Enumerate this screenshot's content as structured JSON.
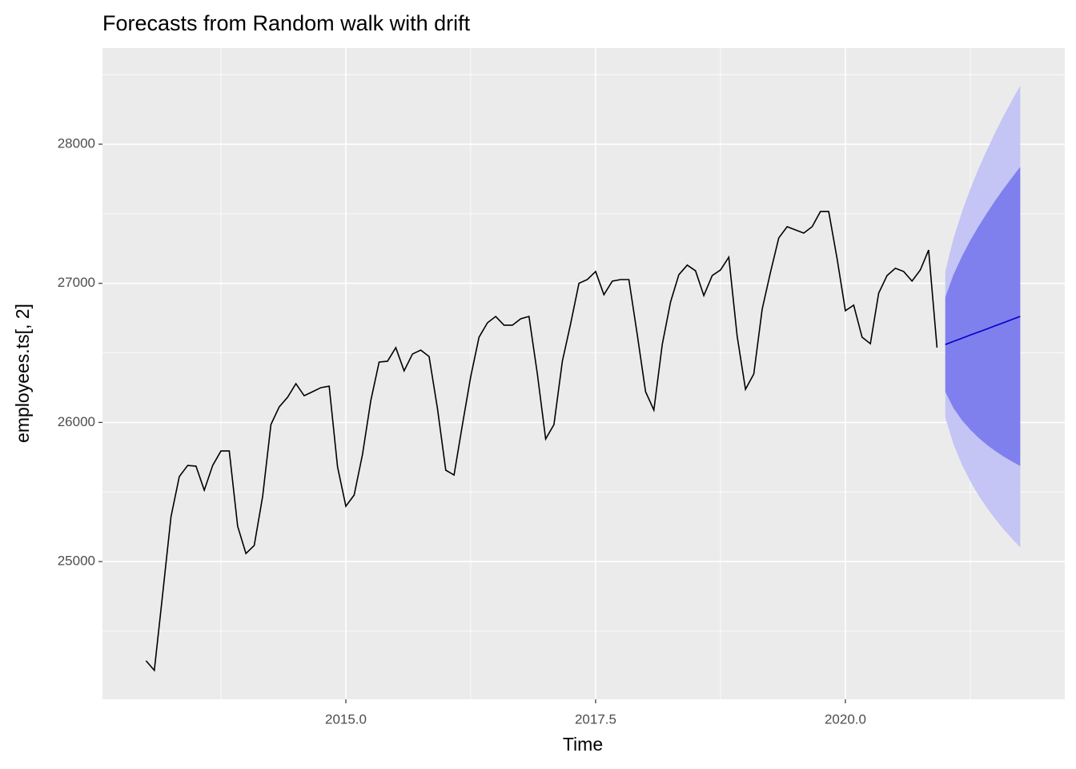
{
  "chart_data": {
    "type": "line",
    "title": "Forecasts from Random walk with drift",
    "xlabel": "Time",
    "ylabel": "employees.ts[, 2]",
    "xlim": [
      2012.564,
      2022.196
    ],
    "ylim": [
      24010,
      28691
    ],
    "xticks": [
      {
        "value": 2015,
        "label": "2015.0"
      },
      {
        "value": 2017.5,
        "label": "2017.5"
      },
      {
        "value": 2020,
        "label": "2020.0"
      }
    ],
    "yticks": [
      25000,
      26000,
      27000,
      28000
    ],
    "x_minor_grid": [
      2013.75,
      2016.25,
      2018.75,
      2021.25
    ],
    "y_minor_grid": [
      24500,
      25500,
      26500,
      27500,
      28500
    ],
    "grid": true,
    "series": [
      {
        "color": "#000000",
        "x": [
          2013,
          2013.083,
          2013.167,
          2013.25,
          2013.333,
          2013.417,
          2013.5,
          2013.583,
          2013.667,
          2013.75,
          2013.833,
          2013.917,
          2014,
          2014.083,
          2014.167,
          2014.25,
          2014.333,
          2014.417,
          2014.5,
          2014.583,
          2014.667,
          2014.75,
          2014.833,
          2014.917,
          2015,
          2015.083,
          2015.167,
          2015.25,
          2015.333,
          2015.417,
          2015.5,
          2015.583,
          2015.667,
          2015.75,
          2015.833,
          2015.917,
          2016,
          2016.083,
          2016.167,
          2016.25,
          2016.333,
          2016.417,
          2016.5,
          2016.583,
          2016.667,
          2016.75,
          2016.833,
          2016.917,
          2017,
          2017.083,
          2017.167,
          2017.25,
          2017.333,
          2017.417,
          2017.5,
          2017.583,
          2017.667,
          2017.75,
          2017.833,
          2017.917,
          2018,
          2018.083,
          2018.167,
          2018.25,
          2018.333,
          2018.417,
          2018.5,
          2018.583,
          2018.667,
          2018.75,
          2018.833,
          2018.917,
          2019,
          2019.083,
          2019.167,
          2019.25,
          2019.333,
          2019.417,
          2019.5,
          2019.583,
          2019.667,
          2019.75,
          2019.833,
          2019.917,
          2020,
          2020.083,
          2020.167,
          2020.25,
          2020.333,
          2020.417,
          2020.5,
          2020.583,
          2020.667,
          2020.75,
          2020.833,
          2020.917
        ],
        "values": [
          24287,
          24218,
          24770,
          25323,
          25611,
          25691,
          25686,
          25513,
          25691,
          25795,
          25795,
          25254,
          25058,
          25116,
          25467,
          25985,
          26112,
          26181,
          26279,
          26192,
          26221,
          26250,
          26261,
          25680,
          25398,
          25478,
          25772,
          26158,
          26434,
          26440,
          26538,
          26371,
          26492,
          26520,
          26474,
          26100,
          25657,
          25622,
          25985,
          26330,
          26613,
          26716,
          26762,
          26699,
          26699,
          26745,
          26762,
          26348,
          25881,
          25985,
          26440,
          26710,
          27000,
          27027,
          27085,
          26918,
          27016,
          27027,
          27027,
          26630,
          26221,
          26089,
          26561,
          26866,
          27062,
          27131,
          27090,
          26912,
          27056,
          27096,
          27188,
          26618,
          26238,
          26348,
          26814,
          27079,
          27326,
          27407,
          27384,
          27361,
          27407,
          27516,
          27516,
          27177,
          26803,
          26843,
          26613,
          26566,
          26929,
          27056,
          27108,
          27085,
          27016,
          27096,
          27240,
          26538
        ]
      },
      {
        "color": "#0000cc",
        "x": [
          2021,
          2021.083,
          2021.167,
          2021.25,
          2021.333,
          2021.417,
          2021.5,
          2021.583,
          2021.667,
          2021.75
        ],
        "values": [
          26560,
          26583,
          26605,
          26628,
          26650,
          26672,
          26695,
          26717,
          26740,
          26762
        ]
      }
    ],
    "bands": [
      {
        "color": "#c4c4f5",
        "lower": [
          26035,
          25841,
          25696,
          25578,
          25476,
          25386,
          25306,
          25232,
          25165,
          25102
        ],
        "upper": [
          27085,
          27325,
          27514,
          27678,
          27824,
          27958,
          28084,
          28202,
          28315,
          28422
        ]
      },
      {
        "color": "#7f7fed",
        "lower": [
          26220,
          26102,
          26016,
          25948,
          25890,
          25839,
          25795,
          25755,
          25720,
          25687
        ],
        "upper": [
          26900,
          27064,
          27194,
          27308,
          27410,
          27505,
          27595,
          27679,
          27760,
          27837
        ]
      }
    ]
  }
}
